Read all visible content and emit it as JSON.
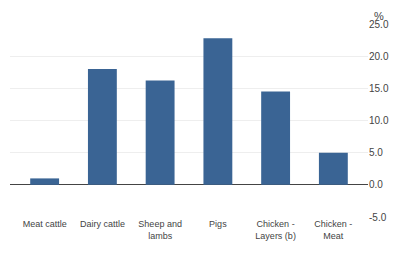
{
  "chart_data": {
    "type": "bar",
    "categories": [
      "Meat cattle",
      "Dairy cattle",
      "Sheep and\nlambs",
      "Pigs",
      "Chicken -\nLayers (b)",
      "Chicken -\nMeat"
    ],
    "values": [
      1.0,
      18.0,
      16.2,
      22.8,
      14.5,
      5.0
    ],
    "color": "#3a6494",
    "ylabel": "%",
    "ylim": [
      -5.0,
      25.0
    ],
    "yticks": [
      {
        "value": -5.0,
        "label": "-5.0"
      },
      {
        "value": 0.0,
        "label": "0.0"
      },
      {
        "value": 5.0,
        "label": "5.0"
      },
      {
        "value": 10.0,
        "label": "10.0"
      },
      {
        "value": 15.0,
        "label": "15.0"
      },
      {
        "value": 20.0,
        "label": "20.0"
      },
      {
        "value": 25.0,
        "label": "25.0"
      }
    ],
    "grid": true
  }
}
